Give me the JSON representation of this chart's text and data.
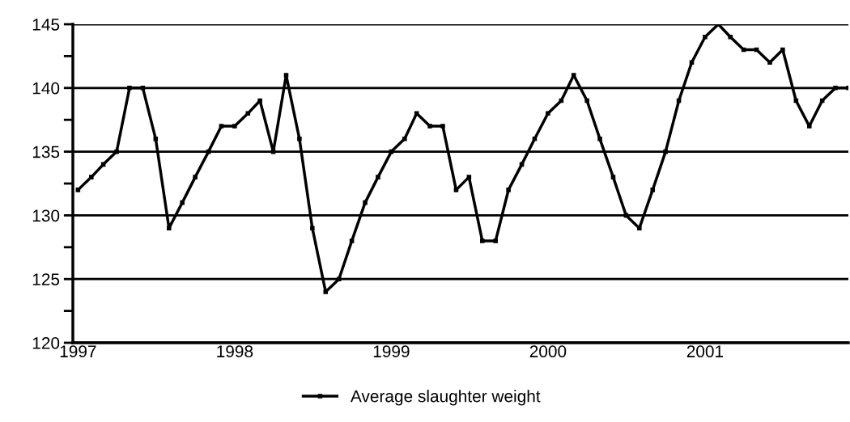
{
  "chart_data": {
    "type": "line",
    "x": [
      "1997-01",
      "1997-02",
      "1997-03",
      "1997-04",
      "1997-05",
      "1997-06",
      "1997-07",
      "1997-08",
      "1997-09",
      "1997-10",
      "1997-11",
      "1997-12",
      "1998-01",
      "1998-02",
      "1998-03",
      "1998-04",
      "1998-05",
      "1998-06",
      "1998-07",
      "1998-08",
      "1998-09",
      "1998-10",
      "1998-11",
      "1998-12",
      "1999-01",
      "1999-02",
      "1999-03",
      "1999-04",
      "1999-05",
      "1999-06",
      "1999-07",
      "1999-08",
      "1999-09",
      "1999-10",
      "1999-11",
      "1999-12",
      "2000-01",
      "2000-02",
      "2000-03",
      "2000-04",
      "2000-05",
      "2000-06",
      "2000-07",
      "2000-08",
      "2000-09",
      "2000-10",
      "2000-11",
      "2000-12",
      "2001-01",
      "2001-02",
      "2001-03",
      "2001-04",
      "2001-05",
      "2001-06",
      "2001-07",
      "2001-08",
      "2001-09",
      "2001-10",
      "2001-11",
      "2001-12"
    ],
    "series": [
      {
        "name": "Average slaughter weight",
        "color": "#000000",
        "values": [
          132,
          133,
          134,
          135,
          140,
          140,
          136,
          129,
          131,
          133,
          135,
          137,
          137,
          138,
          139,
          135,
          141,
          136,
          129,
          124,
          125,
          128,
          131,
          133,
          135,
          136,
          138,
          137,
          137,
          132,
          133,
          128,
          128,
          132,
          134,
          136,
          138,
          139,
          141,
          139,
          136,
          133,
          130,
          129,
          132,
          135,
          139,
          142,
          144,
          145,
          144,
          143,
          143,
          142,
          143,
          139,
          137,
          139,
          140,
          140
        ]
      }
    ],
    "xlim": [
      "1996-12-20",
      "2001-12"
    ],
    "xticks": [
      {
        "value": "1997-01",
        "label": "1997"
      },
      {
        "value": "1998-01",
        "label": "1998"
      },
      {
        "value": "1999-01",
        "label": "1999"
      },
      {
        "value": "2000-01",
        "label": "2000"
      },
      {
        "value": "2001-01",
        "label": "2001"
      }
    ],
    "ylim": [
      120,
      145
    ],
    "yticks": [
      120,
      {
        "value": 122.5,
        "label": null
      },
      125,
      {
        "value": 127.5,
        "label": null
      },
      130,
      {
        "value": 132.5,
        "label": null
      },
      135,
      {
        "value": 137.5,
        "label": null
      },
      140,
      {
        "value": 142.5,
        "label": null
      },
      145
    ],
    "grid": "y",
    "legend": "bottom",
    "marker": "square",
    "line_style": "solid"
  }
}
